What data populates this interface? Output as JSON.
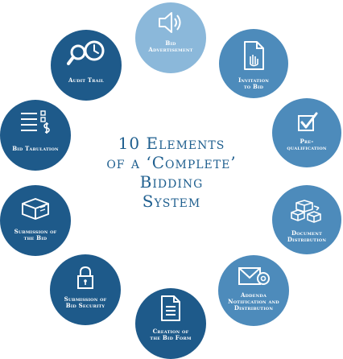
{
  "title": {
    "line1": "10 Elements",
    "line2": "of a ‘Complete’",
    "line3": "Bidding",
    "line4": "System"
  },
  "colors": {
    "dark": "#1e5a8a",
    "mid": "#4d8bbb",
    "light": "#8bb8da",
    "title": "#1f5f8f"
  },
  "elements": [
    {
      "id": "bid-advertisement",
      "label": [
        "Bid",
        "Advertisement"
      ],
      "icon": "speaker-icon"
    },
    {
      "id": "invitation-to-bid",
      "label": [
        "Invitation",
        "to Bid"
      ],
      "icon": "document-hand-icon"
    },
    {
      "id": "pre-qualification",
      "label": [
        "Pre-",
        "qualification"
      ],
      "icon": "checkbox-icon"
    },
    {
      "id": "document-distribution",
      "label": [
        "Document",
        "Distribution"
      ],
      "icon": "boxes-icon"
    },
    {
      "id": "addenda-notification",
      "label": [
        "Addenda",
        "Notification and",
        "Distribution"
      ],
      "icon": "envelope-icon"
    },
    {
      "id": "creation-of-bid-form",
      "label": [
        "Creation of",
        "the Bid Form"
      ],
      "icon": "form-icon"
    },
    {
      "id": "submission-of-bid-security",
      "label": [
        "Submission of",
        "Bid Security"
      ],
      "icon": "padlock-icon"
    },
    {
      "id": "submission-of-bid",
      "label": [
        "Submission of",
        "the Bid"
      ],
      "icon": "box-icon"
    },
    {
      "id": "bid-tabulation",
      "label": [
        "Bid Tabulation"
      ],
      "icon": "list-dollar-icon"
    },
    {
      "id": "audit-trail",
      "label": [
        "Audit Trail"
      ],
      "icon": "magnifier-clock-icon"
    }
  ]
}
